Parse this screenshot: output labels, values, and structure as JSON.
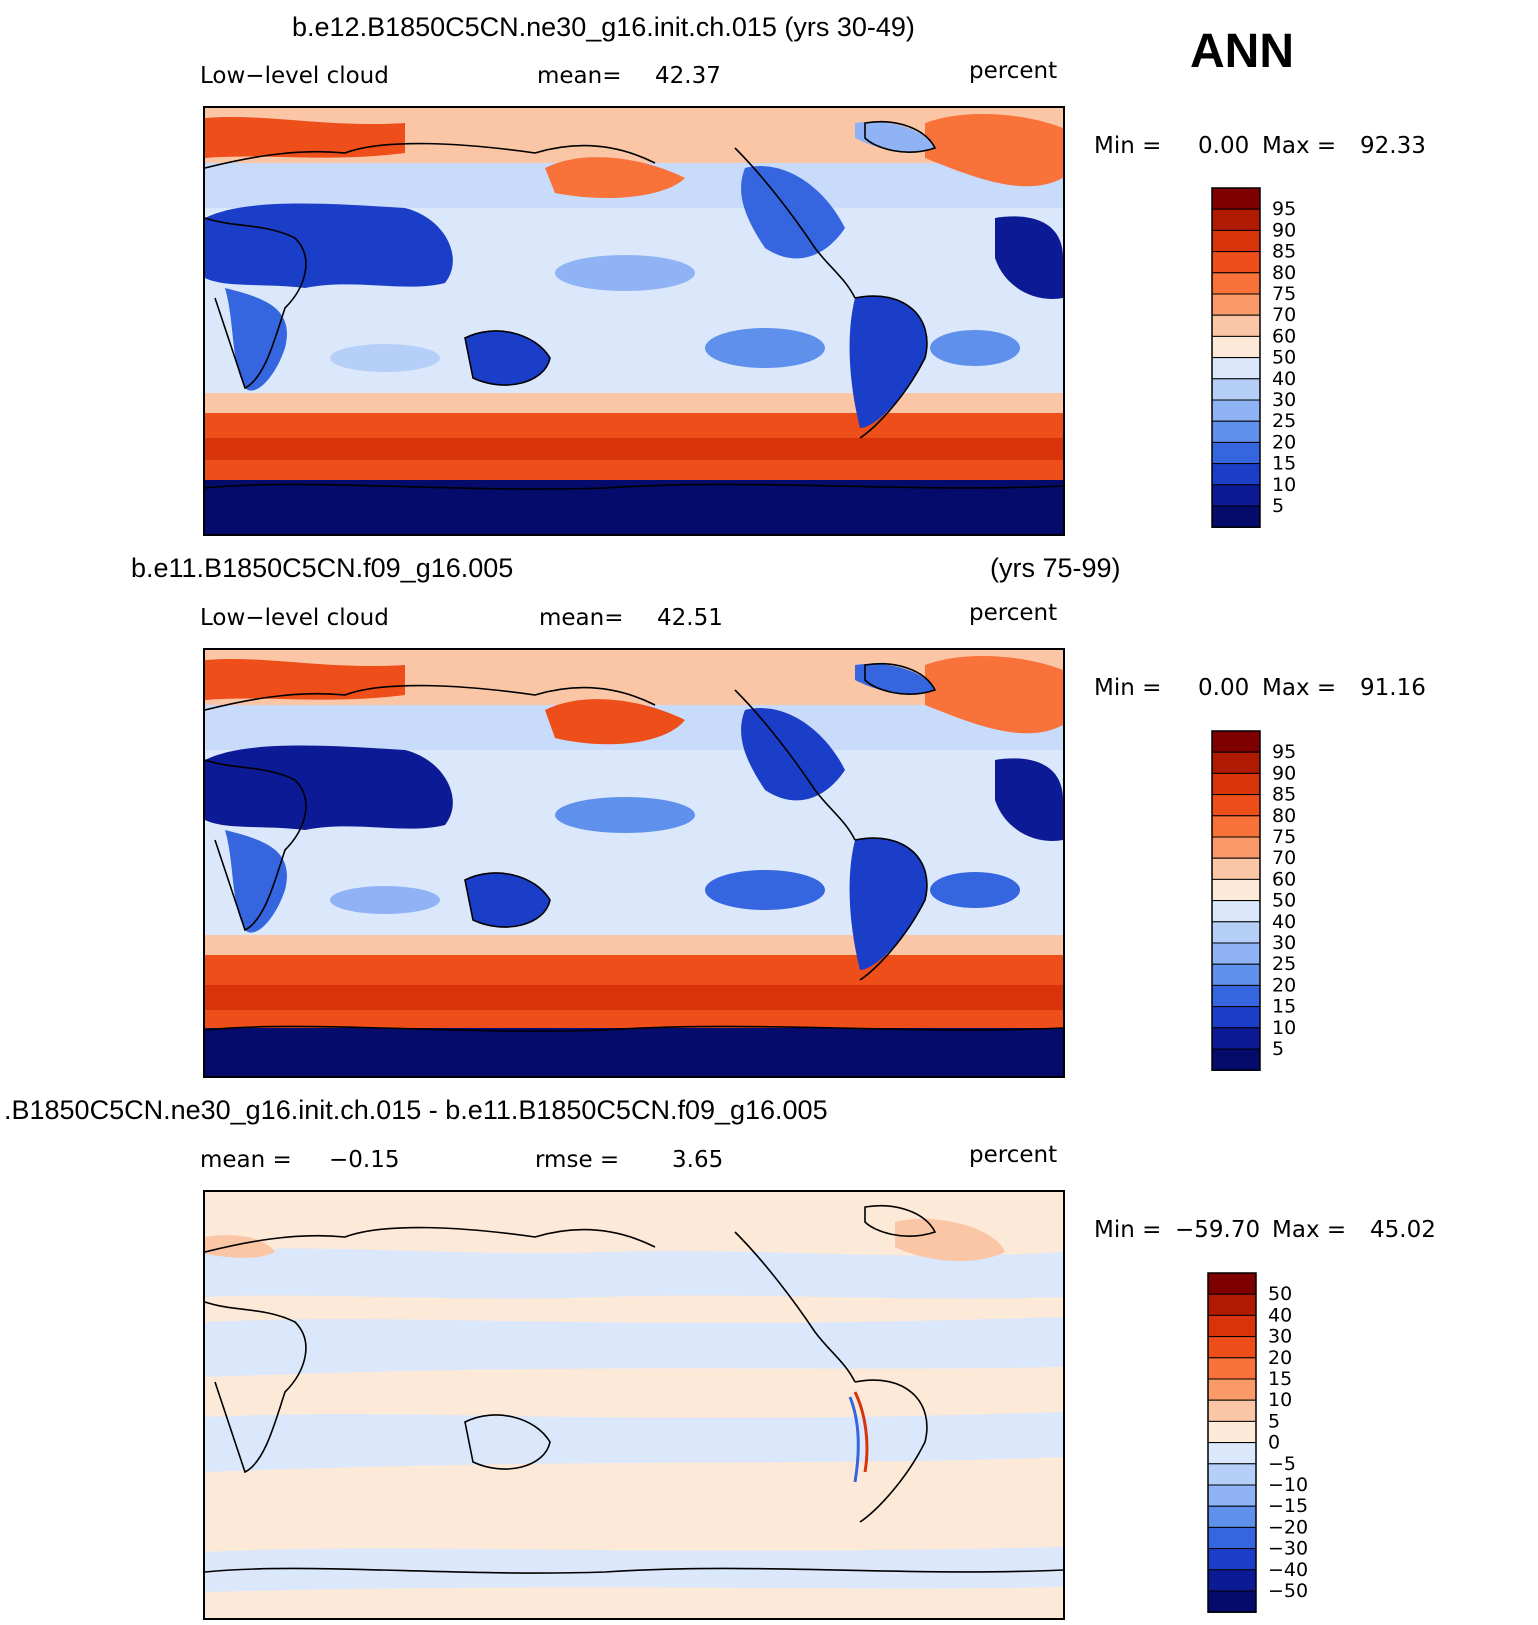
{
  "season": "ANN",
  "units": "percent",
  "panels": [
    {
      "title": "b.e12.B1850C5CN.ne30_g16.init.ch.015 (yrs 30-49)",
      "title_left": "",
      "title_right": "",
      "variable": "Low−level cloud",
      "stat_label": "mean=",
      "stat_value": "42.37",
      "stat2_label": "",
      "stat2_value": "",
      "units": "percent",
      "min_label": "Min =",
      "min_value": "0.00",
      "max_label": "Max =",
      "max_value": "92.33"
    },
    {
      "title": "",
      "title_left": "b.e11.B1850C5CN.f09_g16.005",
      "title_right": "(yrs 75-99)",
      "variable": "Low−level cloud",
      "stat_label": "mean=",
      "stat_value": "42.51",
      "stat2_label": "",
      "stat2_value": "",
      "units": "percent",
      "min_label": "Min =",
      "min_value": "0.00",
      "max_label": "Max =",
      "max_value": "91.16"
    },
    {
      "title": ".B1850C5CN.ne30_g16.init.ch.015 - b.e11.B1850C5CN.f09_g16.005",
      "title_left": "",
      "title_right": "",
      "variable": "",
      "stat_label": "mean =",
      "stat_value": "−0.15",
      "stat2_label": "rmse =",
      "stat2_value": "3.65",
      "units": "percent",
      "min_label": "Min =",
      "min_value": "−59.70",
      "max_label": "Max =",
      "max_value": "45.02"
    }
  ],
  "chart_data": [
    {
      "type": "heatmap",
      "title": "b.e12.B1850C5CN.ne30_g16.init.ch.015 (yrs 30-49)",
      "variable": "Low-level cloud",
      "units": "percent",
      "mean": 42.37,
      "min": 0.0,
      "max": 92.33,
      "colorbar_levels": [
        95,
        90,
        85,
        80,
        75,
        70,
        60,
        50,
        40,
        30,
        25,
        20,
        15,
        10,
        5
      ],
      "colorbar_colors": [
        "#7f0000",
        "#b01a00",
        "#d8330a",
        "#ee4e1a",
        "#f8723a",
        "#fa9a68",
        "#fbc6a6",
        "#fde9d8",
        "#dbe8fb",
        "#b6cff9",
        "#8fb3f4",
        "#5e90ec",
        "#3566df",
        "#1b3ec8",
        "#0c1a96",
        "#050b6a"
      ],
      "grid": false,
      "legend_position": "right"
    },
    {
      "type": "heatmap",
      "title": "b.e11.B1850C5CN.f09_g16.005 (yrs 75-99)",
      "variable": "Low-level cloud",
      "units": "percent",
      "mean": 42.51,
      "min": 0.0,
      "max": 91.16,
      "colorbar_levels": [
        95,
        90,
        85,
        80,
        75,
        70,
        60,
        50,
        40,
        30,
        25,
        20,
        15,
        10,
        5
      ],
      "colorbar_colors": [
        "#7f0000",
        "#b01a00",
        "#d8330a",
        "#ee4e1a",
        "#f8723a",
        "#fa9a68",
        "#fbc6a6",
        "#fde9d8",
        "#dbe8fb",
        "#b6cff9",
        "#8fb3f4",
        "#5e90ec",
        "#3566df",
        "#1b3ec8",
        "#0c1a96",
        "#050b6a"
      ],
      "grid": false,
      "legend_position": "right"
    },
    {
      "type": "heatmap",
      "title": ".B1850C5CN.ne30_g16.init.ch.015 - b.e11.B1850C5CN.f09_g16.005",
      "units": "percent",
      "mean": -0.15,
      "rmse": 3.65,
      "min": -59.7,
      "max": 45.02,
      "colorbar_levels": [
        50,
        40,
        30,
        20,
        15,
        10,
        5,
        0,
        -5,
        -10,
        -15,
        -20,
        -30,
        -40,
        -50
      ],
      "colorbar_level_labels": [
        "50",
        "40",
        "30",
        "20",
        "15",
        "10",
        "5",
        "0",
        "−5",
        "−10",
        "−15",
        "−20",
        "−30",
        "−40",
        "−50"
      ],
      "colorbar_colors": [
        "#7f0000",
        "#b01a00",
        "#d8330a",
        "#ee4e1a",
        "#f8723a",
        "#fa9a68",
        "#fbc6a6",
        "#fde9d8",
        "#dbe8fb",
        "#b6cff9",
        "#8fb3f4",
        "#5e90ec",
        "#3566df",
        "#1b3ec8",
        "#0c1a96",
        "#050b6a"
      ],
      "grid": false,
      "legend_position": "right"
    }
  ]
}
